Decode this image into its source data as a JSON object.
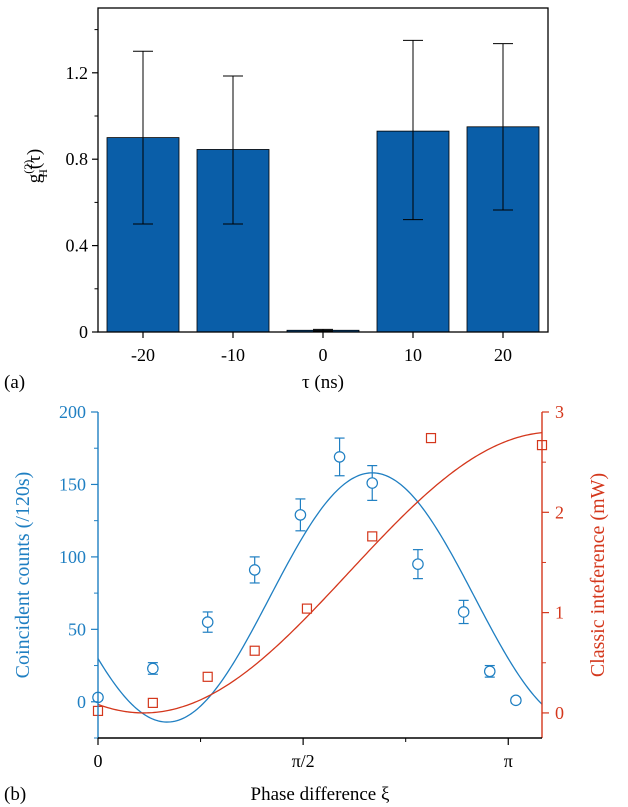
{
  "chart_data": [
    {
      "panel_label": "(a)",
      "type": "bar",
      "categories": [
        "-20",
        "-10",
        "0",
        "10",
        "20"
      ],
      "values": [
        0.9,
        0.845,
        0.008,
        0.93,
        0.95
      ],
      "error_low": [
        0.5,
        0.5,
        0.004,
        0.52,
        0.565
      ],
      "error_high": [
        1.3,
        1.185,
        0.012,
        1.35,
        1.335
      ],
      "xlabel": "τ (ns)",
      "ylabel_main": "g",
      "ylabel_sup": "(2)",
      "ylabel_sub": "H",
      "ylabel_tail": "(τ)",
      "ylim": [
        0,
        1.5
      ],
      "yticks": [
        {
          "value": 0,
          "label": "0"
        },
        {
          "value": 0.4,
          "label": "0.4"
        },
        {
          "value": 0.8,
          "label": "0.8"
        },
        {
          "value": 1.2,
          "label": "1.2"
        }
      ],
      "bar_color": "#0a5ea8",
      "grid": false
    },
    {
      "panel_label": "(b)",
      "type": "scatter",
      "xlabel": "Phase difference ξ",
      "xlim": [
        0,
        3.4
      ],
      "xticks": [
        {
          "value": 0,
          "label": "0"
        },
        {
          "value": 1.5708,
          "label": "π/2"
        },
        {
          "value": 3.1416,
          "label": "π"
        }
      ],
      "ylabel_left": "Coincident counts (/120s)",
      "ylim_left": [
        -25,
        200
      ],
      "yticks_left": [
        0,
        50,
        100,
        150,
        200
      ],
      "ylabel_right": "Classic inteference (mW)",
      "ylim_right": [
        -0.25,
        3
      ],
      "yticks_right": [
        0,
        1,
        2,
        3
      ],
      "left_color": "#1f7fc2",
      "right_color": "#d4371c",
      "series": [
        {
          "axis": "left",
          "marker": "circle",
          "x": [
            0,
            0.42,
            0.84,
            1.2,
            1.55,
            1.85,
            2.1,
            2.45,
            2.8,
            3.0,
            3.2
          ],
          "values": [
            3,
            23,
            55,
            91,
            129,
            169,
            151,
            95,
            62,
            21,
            1
          ],
          "errors": [
            2,
            4,
            7,
            9,
            11,
            13,
            12,
            10,
            8,
            4,
            2
          ]
        },
        {
          "axis": "right",
          "marker": "square",
          "x": [
            0,
            0.42,
            0.84,
            1.2,
            1.6,
            2.1,
            2.55,
            3.4
          ],
          "values": [
            0.02,
            0.1,
            0.36,
            0.62,
            1.04,
            1.76,
            2.74,
            2.67
          ]
        }
      ],
      "fit_left": {
        "a": 72,
        "b": 86,
        "k": 2,
        "phase": 2.1
      },
      "fit_right": {
        "a": 1.4,
        "b": -1.4,
        "k": 1,
        "phase": 0.35
      }
    }
  ]
}
